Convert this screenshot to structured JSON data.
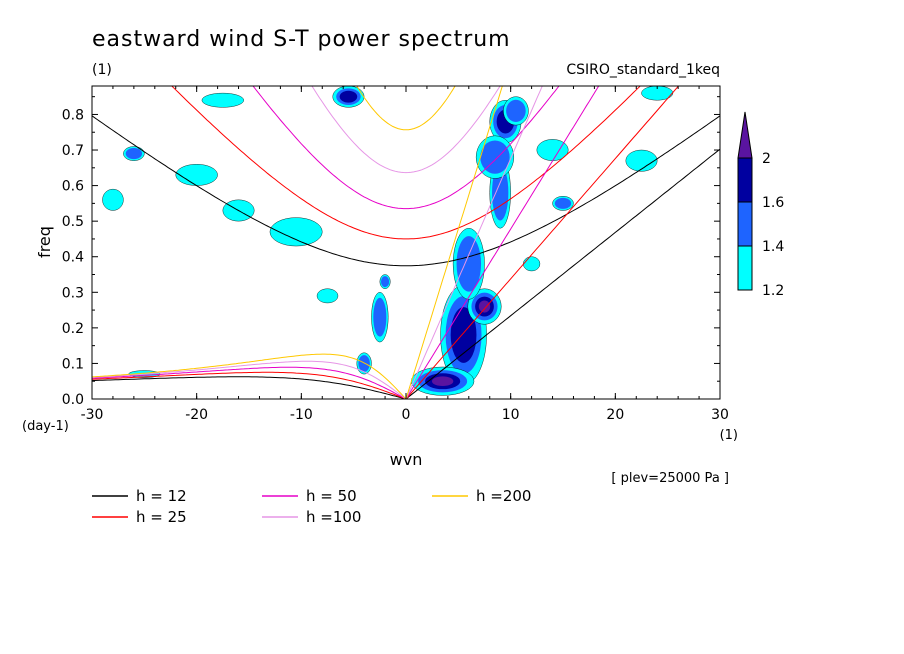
{
  "title": "eastward wind S-T power spectrum",
  "units_note": "(1)",
  "dataset": "CSIRO_standard_1keq",
  "plev_note": "[ plev=25000 Pa ]",
  "chart_data": {
    "type": "contour",
    "xlabel": "wvn",
    "ylabel": "freq",
    "x_units": "(1)",
    "y_units": "(day-1)",
    "xlim": [
      -30,
      30
    ],
    "ylim": [
      0,
      0.88
    ],
    "x_ticks": [
      "-30",
      "-20",
      "-10",
      "0",
      "10",
      "20",
      "30"
    ],
    "y_ticks": [
      "0.0",
      "0.1",
      "0.2",
      "0.3",
      "0.4",
      "0.5",
      "0.6",
      "0.7",
      "0.8"
    ],
    "x_tick_values": [
      -30,
      -20,
      -10,
      0,
      10,
      20,
      30
    ],
    "y_tick_values": [
      0,
      0.1,
      0.2,
      0.3,
      0.4,
      0.5,
      0.6,
      0.7,
      0.8
    ],
    "colorbar": {
      "levels": [
        "1.2",
        "1.4",
        "1.6",
        "2"
      ],
      "level_values": [
        1.2,
        1.4,
        1.6,
        2.0
      ],
      "colors": [
        "#00ffff",
        "#1e64ff",
        "#0000a0",
        "#5a14a0"
      ]
    },
    "dispersion_curves": [
      {
        "name": "h = 12",
        "color": "#000000",
        "h": 12
      },
      {
        "name": "h = 25",
        "color": "#ff0000",
        "h": 25
      },
      {
        "name": "h = 50",
        "color": "#e600c8",
        "h": 50
      },
      {
        "name": "h =100",
        "color": "#e696e6",
        "h": 100
      },
      {
        "name": "h =200",
        "color": "#ffc800",
        "h": 200
      }
    ],
    "power_regions": [
      {
        "x": 5.5,
        "y": 0.18,
        "rx": 2.2,
        "ry": 0.14,
        "level": 2
      },
      {
        "x": 7.5,
        "y": 0.26,
        "rx": 1.6,
        "ry": 0.05,
        "level": 3
      },
      {
        "x": 3.5,
        "y": 0.05,
        "rx": 3.0,
        "ry": 0.04,
        "level": 3
      },
      {
        "x": 6.0,
        "y": 0.38,
        "rx": 1.5,
        "ry": 0.1,
        "level": 1
      },
      {
        "x": 9.5,
        "y": 0.78,
        "rx": 1.5,
        "ry": 0.06,
        "level": 2
      },
      {
        "x": 9.0,
        "y": 0.58,
        "rx": 1.0,
        "ry": 0.1,
        "level": 1
      },
      {
        "x": 8.5,
        "y": 0.68,
        "rx": 1.8,
        "ry": 0.06,
        "level": 1
      },
      {
        "x": 10.5,
        "y": 0.81,
        "rx": 1.2,
        "ry": 0.04,
        "level": 1
      },
      {
        "x": -2.5,
        "y": 0.23,
        "rx": 0.8,
        "ry": 0.07,
        "level": 1
      },
      {
        "x": -5.5,
        "y": 0.85,
        "rx": 1.5,
        "ry": 0.03,
        "level": 2
      },
      {
        "x": -4.0,
        "y": 0.1,
        "rx": 0.7,
        "ry": 0.03,
        "level": 1
      },
      {
        "x": -10.5,
        "y": 0.47,
        "rx": 2.5,
        "ry": 0.04,
        "level": 0
      },
      {
        "x": -16.0,
        "y": 0.53,
        "rx": 1.5,
        "ry": 0.03,
        "level": 0
      },
      {
        "x": -20.0,
        "y": 0.63,
        "rx": 2.0,
        "ry": 0.03,
        "level": 0
      },
      {
        "x": -17.5,
        "y": 0.84,
        "rx": 2.0,
        "ry": 0.02,
        "level": 0
      },
      {
        "x": -26.0,
        "y": 0.69,
        "rx": 1.0,
        "ry": 0.02,
        "level": 1
      },
      {
        "x": -28.0,
        "y": 0.56,
        "rx": 1.0,
        "ry": 0.03,
        "level": 0
      },
      {
        "x": 14.0,
        "y": 0.7,
        "rx": 1.5,
        "ry": 0.03,
        "level": 0
      },
      {
        "x": 22.5,
        "y": 0.67,
        "rx": 1.5,
        "ry": 0.03,
        "level": 0
      },
      {
        "x": 24.0,
        "y": 0.86,
        "rx": 1.5,
        "ry": 0.02,
        "level": 0
      },
      {
        "x": -7.5,
        "y": 0.29,
        "rx": 1.0,
        "ry": 0.02,
        "level": 0
      },
      {
        "x": -25.0,
        "y": 0.07,
        "rx": 1.5,
        "ry": 0.01,
        "level": 0
      },
      {
        "x": -2.0,
        "y": 0.33,
        "rx": 0.5,
        "ry": 0.02,
        "level": 1
      },
      {
        "x": 15.0,
        "y": 0.55,
        "rx": 1.0,
        "ry": 0.02,
        "level": 1
      },
      {
        "x": 12.0,
        "y": 0.38,
        "rx": 0.8,
        "ry": 0.02,
        "level": 0
      }
    ]
  }
}
